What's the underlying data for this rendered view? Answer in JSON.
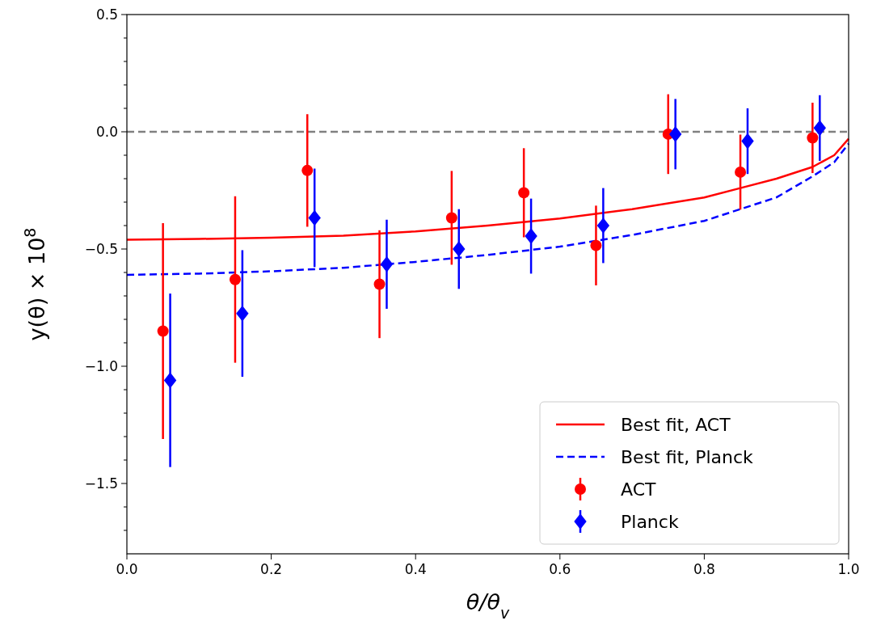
{
  "chart_data": {
    "type": "scatter",
    "xlabel": "θ/θ$_{v}$",
    "ylabel": "y(θ) × 10$^{8}$",
    "xlim": [
      0,
      1
    ],
    "ylim": [
      -1.8,
      0.5
    ],
    "xticks": [
      {
        "value": 0,
        "label": "0.0"
      },
      {
        "value": 0.2,
        "label": "0.2"
      },
      {
        "value": 0.4,
        "label": "0.4"
      },
      {
        "value": 0.6,
        "label": "0.6"
      },
      {
        "value": 0.8,
        "label": "0.8"
      },
      {
        "value": 1,
        "label": "1.0"
      }
    ],
    "yticks": [
      {
        "value": -1.7,
        "label": null
      },
      {
        "value": -1.6,
        "label": null
      },
      {
        "value": -1.5,
        "label": "−1.5"
      },
      {
        "value": -1.4,
        "label": null
      },
      {
        "value": -1.3,
        "label": null
      },
      {
        "value": -1.2,
        "label": null
      },
      {
        "value": -1.1,
        "label": null
      },
      {
        "value": -1,
        "label": "−1.0"
      },
      {
        "value": -0.9,
        "label": null
      },
      {
        "value": -0.8,
        "label": null
      },
      {
        "value": -0.7,
        "label": null
      },
      {
        "value": -0.6,
        "label": null
      },
      {
        "value": -0.5,
        "label": "−0.5"
      },
      {
        "value": -0.4,
        "label": null
      },
      {
        "value": -0.3,
        "label": null
      },
      {
        "value": -0.2,
        "label": null
      },
      {
        "value": -0.1,
        "label": null
      },
      {
        "value": 0,
        "label": "0.0"
      },
      {
        "value": 0.1,
        "label": null
      },
      {
        "value": 0.2,
        "label": null
      },
      {
        "value": 0.3,
        "label": null
      },
      {
        "value": 0.4,
        "label": null
      },
      {
        "value": 0.5,
        "label": "0.5"
      }
    ],
    "grid": false,
    "legend": "bottom right",
    "ref_lines": [
      {
        "axis": "y",
        "value": 0,
        "color": "#808080",
        "line_style": "dashed"
      }
    ],
    "series": [
      {
        "name": "Best fit, ACT",
        "type": "line",
        "color": "#ff0000",
        "line_style": "solid",
        "x": [
          0,
          0.1,
          0.2,
          0.3,
          0.4,
          0.5,
          0.6,
          0.7,
          0.8,
          0.85,
          0.9,
          0.95,
          0.98,
          1.0
        ],
        "values": [
          -0.46,
          -0.457,
          -0.452,
          -0.443,
          -0.425,
          -0.4,
          -0.37,
          -0.33,
          -0.28,
          -0.24,
          -0.2,
          -0.15,
          -0.1,
          -0.03
        ]
      },
      {
        "name": "Best fit, Planck",
        "type": "line",
        "color": "#0000ff",
        "line_style": "dashed",
        "x": [
          0,
          0.1,
          0.2,
          0.3,
          0.4,
          0.5,
          0.6,
          0.7,
          0.8,
          0.85,
          0.9,
          0.95,
          0.98,
          1.0
        ],
        "values": [
          -0.61,
          -0.605,
          -0.595,
          -0.58,
          -0.555,
          -0.525,
          -0.49,
          -0.44,
          -0.38,
          -0.33,
          -0.28,
          -0.19,
          -0.13,
          -0.05
        ]
      },
      {
        "name": "ACT",
        "color": "#ff0000",
        "marker": "circle",
        "x": [
          0.05,
          0.15,
          0.25,
          0.35,
          0.45,
          0.55,
          0.65,
          0.75,
          0.85,
          0.95
        ],
        "values": [
          -0.85,
          -0.63,
          -0.165,
          -0.65,
          -0.367,
          -0.26,
          -0.485,
          -0.01,
          -0.172,
          -0.026
        ],
        "errors": [
          0.46,
          0.355,
          0.24,
          0.23,
          0.2,
          0.19,
          0.17,
          0.17,
          0.16,
          0.15
        ]
      },
      {
        "name": "Planck",
        "color": "#0000ff",
        "marker": "diamond",
        "x": [
          0.06,
          0.16,
          0.26,
          0.36,
          0.46,
          0.56,
          0.66,
          0.76,
          0.86,
          0.96
        ],
        "values": [
          -1.06,
          -0.775,
          -0.367,
          -0.565,
          -0.5,
          -0.445,
          -0.4,
          -0.01,
          -0.04,
          0.016
        ],
        "errors": [
          0.37,
          0.27,
          0.21,
          0.19,
          0.17,
          0.16,
          0.16,
          0.15,
          0.14,
          0.14
        ]
      }
    ]
  }
}
